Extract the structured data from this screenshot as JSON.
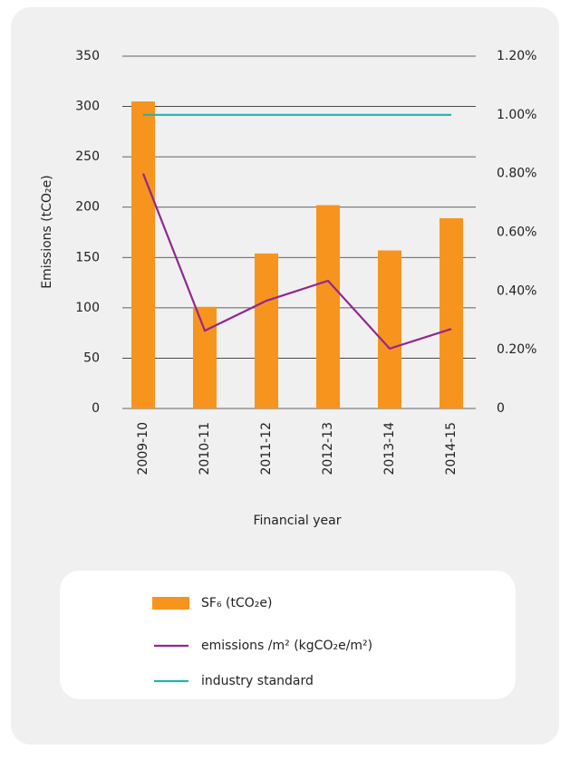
{
  "chart_data": {
    "type": "bar",
    "y_label": "Emissions (tCO₂e)",
    "x_label": "Financial year",
    "categories": [
      "2009-10",
      "2010-11",
      "2011-12",
      "2012-13",
      "2013-14",
      "2014-15"
    ],
    "series": [
      {
        "name": "SF₆ (tCO₂e)",
        "type": "bar",
        "color": "#f7941d",
        "values": [
          305,
          101,
          154,
          202,
          157,
          189
        ]
      },
      {
        "name": "emissions /m² (kgCO₂e/m²)",
        "type": "line",
        "axis": "y2",
        "color": "#92278f",
        "values": [
          0.8,
          0.265,
          0.367,
          0.435,
          0.204,
          0.271
        ]
      },
      {
        "name": "industry standard",
        "type": "line",
        "axis": "y2",
        "color": "#1fb5ad",
        "values": [
          1.0,
          1.0,
          1.0,
          1.0,
          1.0,
          1.0
        ]
      }
    ],
    "ylim": [
      0,
      350
    ],
    "yticks": [
      0,
      50,
      100,
      150,
      200,
      250,
      300,
      350
    ],
    "y2lim": [
      0,
      1.2
    ],
    "y2ticks": [
      0,
      {
        "value": 0.2,
        "label": "0.20%"
      },
      {
        "value": 0.4,
        "label": "0.40%"
      },
      {
        "value": 0.6,
        "label": "0.60%"
      },
      {
        "value": 0.8,
        "label": "0.80%"
      },
      {
        "value": 1.0,
        "label": "1.00%"
      },
      {
        "value": 1.2,
        "label": "1.20%"
      }
    ],
    "grid": true
  }
}
